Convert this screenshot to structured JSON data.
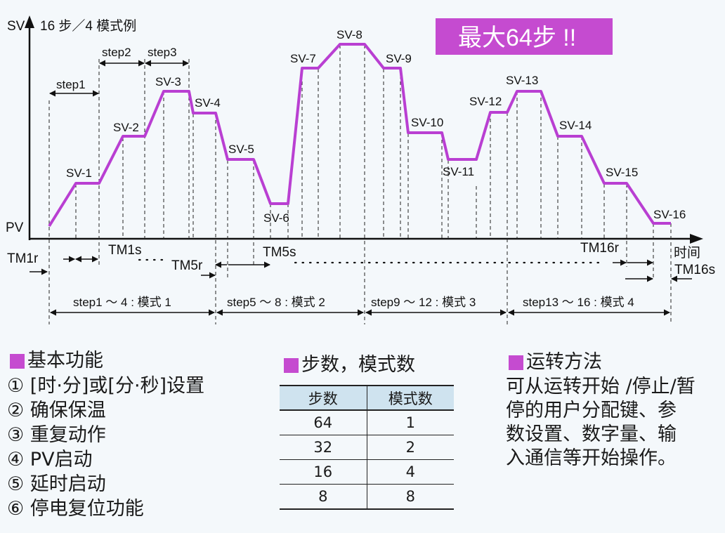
{
  "badge": "最大64步 !!",
  "axes": {
    "y_label": "SV",
    "x_label": "时间",
    "pv_label": "PV"
  },
  "chart_title": "16 步／4 模式例",
  "sv_labels": [
    "SV-1",
    "SV-2",
    "SV-3",
    "SV-4",
    "SV-5",
    "SV-6",
    "SV-7",
    "SV-8",
    "SV-9",
    "SV-10",
    "SV-11",
    "SV-12",
    "SV-13",
    "SV-14",
    "SV-15",
    "SV-16"
  ],
  "step_labels": [
    "step1",
    "step2",
    "step3"
  ],
  "timing_labels": {
    "tm1r": "TM1r",
    "tm1s": "TM1s",
    "tm5r": "TM5r",
    "tm5s": "TM5s",
    "tm16r": "TM16r",
    "tm16s": "TM16s"
  },
  "mode_labels": [
    "step1 ～ 4 : 模式 1",
    "step5 ～ 8 : 模式 2",
    "step9 ～ 12 : 模式 3",
    "step13 ～ 16 : 模式 4"
  ],
  "features": {
    "title": "基本功能",
    "items": [
      "① [时·分]或[分·秒]设置",
      "② 确保保温",
      "③ 重复动作",
      "④ PV启动",
      "⑤ 延时启动",
      "⑥ 停电复位功能"
    ]
  },
  "steps_table": {
    "title": "步数，模式数",
    "headers": [
      "步数",
      "模式数"
    ],
    "rows": [
      [
        "64",
        "1"
      ],
      [
        "32",
        "2"
      ],
      [
        "16",
        "4"
      ],
      [
        "8",
        "8"
      ]
    ]
  },
  "operation": {
    "title": "运转方法",
    "lines": [
      "可从运转开始 /停止/暂",
      "停的用户分配键、参",
      "数设置、数字量、输",
      "入通信等开始操作。"
    ]
  },
  "colors": {
    "profile": "#b93fd2",
    "badge": "#c54bd0",
    "table_header": "#cfe3ef",
    "background": "#f4f8fb"
  }
}
